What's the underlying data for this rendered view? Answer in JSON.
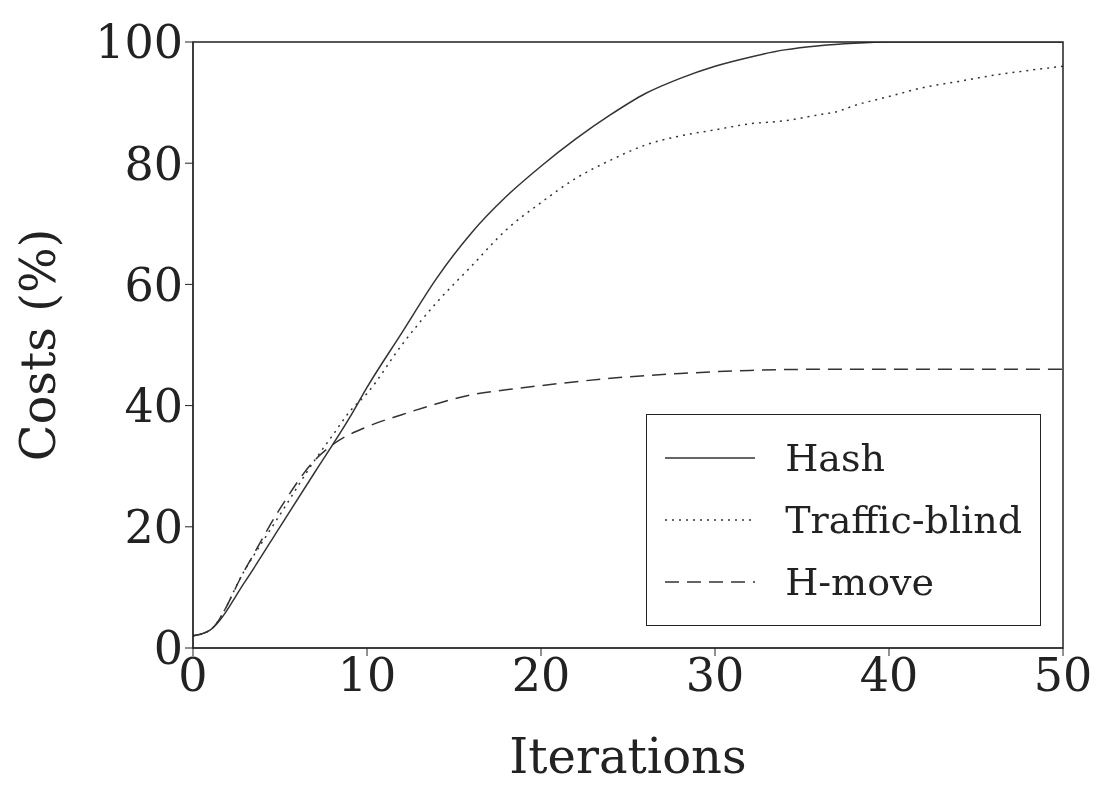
{
  "chart_data": {
    "type": "line",
    "xlabel": "Iterations",
    "ylabel": "Costs (%)",
    "xlim": [
      0,
      50
    ],
    "ylim": [
      0,
      100
    ],
    "xticks": [
      0,
      10,
      20,
      30,
      40,
      50
    ],
    "yticks": [
      0,
      20,
      40,
      60,
      80,
      100
    ],
    "grid": false,
    "legend": "bottom right",
    "marker": "none",
    "series": [
      {
        "name": "Hash",
        "color": "#333333",
        "line_style": "solid",
        "x": [
          0,
          1,
          3,
          5,
          7,
          9,
          10,
          12,
          14,
          16,
          18,
          20,
          22,
          24,
          26,
          28,
          30,
          32,
          34,
          36,
          38,
          40,
          50
        ],
        "values": [
          2,
          3,
          11,
          20,
          29,
          38,
          43,
          52,
          61,
          68.5,
          74.5,
          79.5,
          84,
          88,
          91.5,
          94,
          96,
          97.5,
          98.7,
          99.4,
          99.8,
          100,
          100
        ]
      },
      {
        "name": "Traffic-blind",
        "color": "#333333",
        "line_style": "dotted",
        "x": [
          0,
          1,
          3,
          5,
          7,
          8,
          9,
          10,
          12,
          14,
          16,
          18,
          20,
          22,
          24,
          26,
          28,
          30,
          32,
          34,
          36,
          37,
          38,
          40,
          42,
          44,
          46,
          48,
          50
        ],
        "values": [
          2,
          3,
          13,
          22,
          31,
          35,
          39,
          42,
          50,
          57,
          63,
          69,
          73.5,
          77.5,
          80.5,
          83,
          84.5,
          85.5,
          86.5,
          87,
          88,
          88.5,
          89.5,
          91,
          92.5,
          93.5,
          94.5,
          95.3,
          96
        ]
      },
      {
        "name": "H-move",
        "color": "#333333",
        "line_style": "dashed",
        "x": [
          0,
          1,
          3,
          5,
          7,
          8,
          10,
          12,
          14,
          16,
          18,
          20,
          24,
          28,
          32,
          36,
          40,
          50
        ],
        "values": [
          2,
          3,
          13,
          23,
          31,
          33.5,
          36.5,
          38.5,
          40.3,
          41.8,
          42.6,
          43.3,
          44.5,
          45.3,
          45.8,
          46,
          46,
          46
        ]
      }
    ]
  }
}
